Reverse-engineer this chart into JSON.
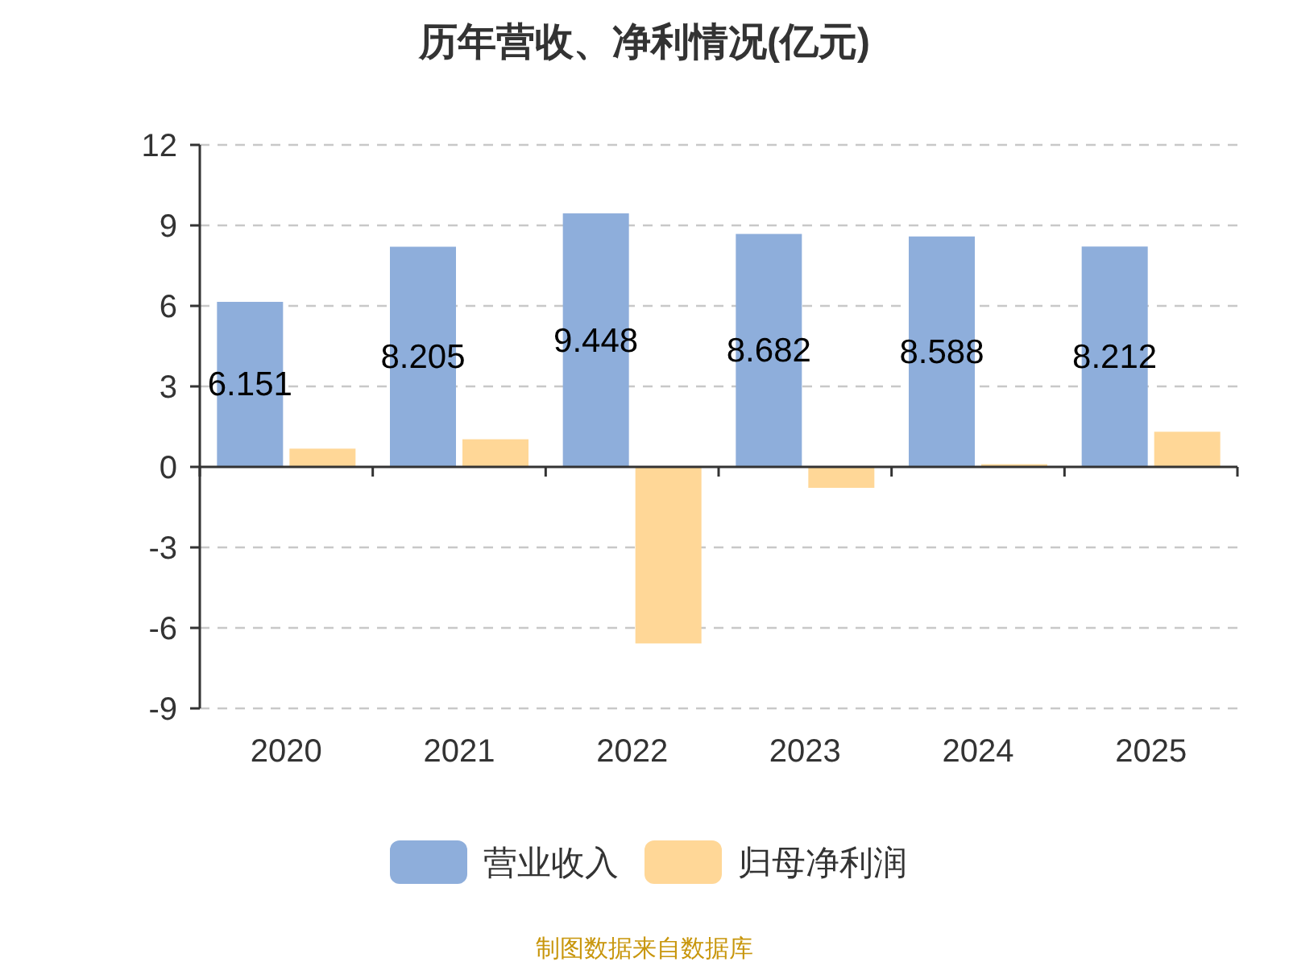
{
  "chart_data": {
    "type": "bar",
    "title": "历年营收、净利情况(亿元)",
    "categories": [
      "2020",
      "2021",
      "2022",
      "2023",
      "2024",
      "2025"
    ],
    "series": [
      {
        "name": "营业收入",
        "color": "#8eaedb",
        "values": [
          6.151,
          8.205,
          9.448,
          8.682,
          8.588,
          8.212
        ],
        "value_labels": [
          "6.151",
          "8.205",
          "9.448",
          "8.682",
          "8.588",
          "8.212"
        ]
      },
      {
        "name": "归母净利润",
        "color": "#ffd797",
        "values": [
          0.68,
          1.03,
          -6.58,
          -0.78,
          0.1,
          1.31
        ]
      }
    ],
    "ylim": [
      -9,
      12
    ],
    "yticks": [
      -9,
      -6,
      -3,
      0,
      3,
      6,
      9,
      12
    ],
    "grid": "y",
    "legend": "bottom",
    "annotations": [
      "制图数据来自数据库"
    ]
  }
}
